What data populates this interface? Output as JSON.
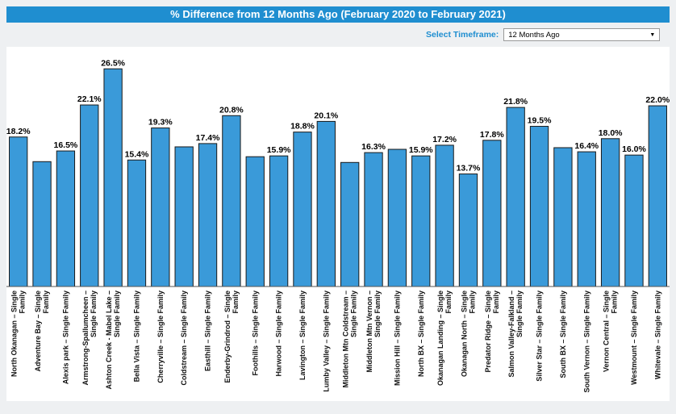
{
  "header": {
    "title": "% Difference from 12 Months Ago (February 2020 to February 2021)"
  },
  "timeframe": {
    "label": "Select Timeframe:",
    "selected": "12 Months Ago"
  },
  "chart_data": {
    "type": "bar",
    "categories": [
      "North Okanagan – Single Family",
      "Adventure Bay – Single Family",
      "Alexis park – Single Family",
      "Armstrong-Spallumcheen – Single Family",
      "Ashton Creek - Mabel Lake – Single Family",
      "Bella Vista – Single Family",
      "Cherryville – Single Family",
      "Coldstream – Single Family",
      "Easthill – Single Family",
      "Enderby-Grindrod – Single Family",
      "Foothills – Single Family",
      "Harwood – Single Family",
      "Lavington – Single Family",
      "Lumby Valley – Single Family",
      "Middleton Mtn Coldstream – Single Family",
      "Middleton Mtn Vernon – Single Family",
      "Mission Hill – Single Family",
      "North BX – Single Family",
      "Okanagan Landing – Single Family",
      "Okanagan North – Single Family",
      "Predator Ridge – Single Family",
      "Salmon Valley-Falkland – Single Family",
      "Silver Star – Single Family",
      "South BX – Single Family",
      "South Vernon – Single Family",
      "Vernon Central – Single Family",
      "Westmount – Single Family",
      "Whitevale – Single Family"
    ],
    "tick_labels": [
      [
        "North Okanagan – Single",
        "Family"
      ],
      [
        "Adventure Bay – Single",
        "Family"
      ],
      [
        "Alexis park – Single Family"
      ],
      [
        "Armstrong-Spallumcheen –",
        "Single Family"
      ],
      [
        "Ashton Creek - Mabel Lake –",
        "Single Family"
      ],
      [
        "Bella Vista – Single Family"
      ],
      [
        "Cherryville – Single Family"
      ],
      [
        "Coldstream – Single Family"
      ],
      [
        "Easthill – Single Family"
      ],
      [
        "Enderby-Grindrod – Single",
        "Family"
      ],
      [
        "Foothills – Single Family"
      ],
      [
        "Harwood – Single Family"
      ],
      [
        "Lavington – Single Family"
      ],
      [
        "Lumby Valley – Single Family"
      ],
      [
        "Middleton Mtn Coldstream –",
        "Single Family"
      ],
      [
        "Middleton Mtn Vernon –",
        "Single Family"
      ],
      [
        "Mission Hill – Single Family"
      ],
      [
        "North BX – Single Family"
      ],
      [
        "Okanagan Landing – Single",
        "Family"
      ],
      [
        "Okanagan North – Single",
        "Family"
      ],
      [
        "Predator Ridge – Single",
        "Family"
      ],
      [
        "Salmon Valley-Falkland –",
        "Single Family"
      ],
      [
        "Silver Star – Single Family"
      ],
      [
        "South BX – Single Family"
      ],
      [
        "South Vernon – Single Family"
      ],
      [
        "Vernon Central – Single",
        "Family"
      ],
      [
        "Westmount – Single Family"
      ],
      [
        "Whitevale – Single Family"
      ]
    ],
    "values": [
      18.2,
      15.2,
      16.5,
      22.1,
      26.5,
      15.4,
      19.3,
      17.0,
      17.4,
      20.8,
      15.8,
      15.9,
      18.8,
      20.1,
      15.1,
      16.3,
      16.7,
      15.9,
      17.2,
      13.7,
      17.8,
      21.8,
      19.5,
      16.9,
      16.4,
      18.0,
      16.0,
      22.0
    ],
    "value_labels": [
      "18.2%",
      "",
      "16.5%",
      "22.1%",
      "26.5%",
      "15.4%",
      "19.3%",
      "",
      "17.4%",
      "20.8%",
      "",
      "15.9%",
      "18.8%",
      "20.1%",
      "",
      "16.3%",
      "",
      "15.9%",
      "17.2%",
      "13.7%",
      "17.8%",
      "21.8%",
      "19.5%",
      "",
      "16.4%",
      "18.0%",
      "16.0%",
      "22.0%"
    ],
    "ylim": [
      0,
      28
    ],
    "bar_color": "#3a9ad9",
    "grid": false,
    "title": "",
    "xlabel": "",
    "ylabel": ""
  }
}
